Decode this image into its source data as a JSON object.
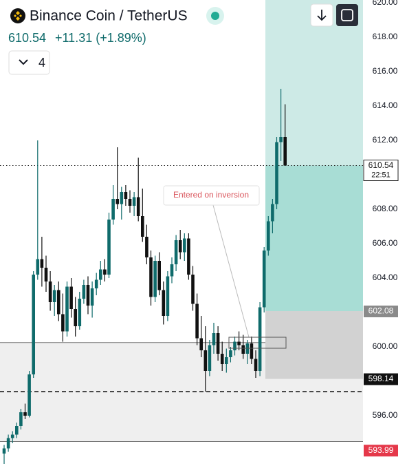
{
  "header": {
    "title": "Binance Coin / TetherUS",
    "price": "610.54",
    "change": "+11.31 (+1.89%)",
    "interval": "4"
  },
  "annotation": "Entered on inversion",
  "chart_data": {
    "type": "candlestick",
    "ylim": [
      592.96,
      620.16
    ],
    "yticks": [
      {
        "value": 596,
        "label": "596.00"
      },
      {
        "value": 600,
        "label": "600.00"
      },
      {
        "value": 604,
        "label": "604.00"
      },
      {
        "value": 606,
        "label": "606.00"
      },
      {
        "value": 608,
        "label": "608.00"
      },
      {
        "value": 612,
        "label": "612.00"
      },
      {
        "value": 614,
        "label": "614.00"
      },
      {
        "value": 616,
        "label": "616.00"
      },
      {
        "value": 618,
        "label": "618.00"
      },
      {
        "value": 620,
        "label": "620.00"
      }
    ],
    "up_color": "#0f6b6b",
    "down_color": "#111111",
    "open": [
      593.8,
      594.1,
      594.7,
      594.9,
      595.4,
      596.2,
      596.0,
      598.4,
      604.2,
      605.1,
      604.6,
      603.8,
      602.6,
      603.3,
      601.9,
      600.9,
      603.5,
      602.2,
      601.2,
      602.8,
      603.6,
      602.4,
      603.4,
      603.9,
      604.5,
      604.2,
      607.4,
      608.6,
      608.3,
      609.0,
      608.6,
      608.2,
      608.7,
      607.6,
      606.4,
      605.2,
      602.9,
      605.0,
      603.3,
      601.8,
      604.1,
      604.8,
      606.2,
      605.5,
      606.3,
      604.2,
      602.5,
      600.5,
      599.8,
      598.6,
      600.1,
      600.8,
      599.6,
      599.0,
      599.4,
      599.8,
      600.3,
      600.1,
      599.6,
      600.2,
      599.3,
      598.6,
      602.3,
      605.6,
      607.3,
      608.3,
      611.9,
      612.2
    ],
    "high": [
      594.3,
      594.9,
      595.1,
      595.6,
      596.4,
      596.7,
      598.6,
      604.4,
      612.0,
      606.4,
      605.3,
      604.4,
      603.6,
      603.8,
      603.1,
      603.8,
      604.0,
      602.9,
      603.2,
      603.9,
      604.1,
      603.8,
      604.3,
      605.0,
      605.1,
      607.8,
      609.4,
      611.6,
      609.3,
      609.4,
      609.1,
      609.0,
      611.0,
      609.2,
      607.1,
      605.6,
      605.3,
      605.5,
      603.8,
      604.4,
      605.2,
      606.5,
      606.8,
      606.6,
      606.6,
      604.7,
      603.1,
      601.8,
      601.2,
      600.4,
      601.4,
      601.2,
      600.3,
      599.9,
      600.0,
      600.6,
      600.9,
      600.7,
      600.4,
      600.6,
      599.8,
      602.6,
      605.8,
      607.6,
      608.6,
      612.2,
      615.0,
      614.1
    ],
    "low": [
      593.2,
      593.9,
      594.4,
      594.7,
      595.2,
      595.8,
      595.9,
      598.2,
      603.9,
      603.5,
      603.2,
      602.1,
      601.8,
      601.5,
      600.3,
      600.6,
      601.7,
      600.6,
      601.0,
      602.5,
      601.9,
      601.7,
      603.0,
      603.6,
      603.8,
      604.0,
      607.1,
      608.0,
      607.4,
      608.2,
      607.8,
      607.6,
      607.3,
      606.1,
      604.8,
      602.4,
      602.6,
      603.0,
      601.3,
      601.5,
      603.7,
      604.4,
      605.1,
      605.0,
      603.9,
      602.1,
      600.1,
      599.4,
      597.4,
      598.3,
      599.6,
      599.2,
      598.6,
      598.5,
      599.1,
      599.5,
      599.8,
      599.3,
      599.0,
      599.0,
      598.2,
      598.3,
      602.0,
      605.3,
      606.6,
      608.0,
      610.8,
      610.6
    ],
    "close": [
      594.1,
      594.7,
      594.9,
      595.4,
      596.2,
      596.0,
      598.4,
      604.2,
      605.1,
      604.6,
      603.8,
      602.6,
      603.3,
      601.9,
      600.9,
      603.5,
      602.2,
      601.2,
      602.8,
      603.6,
      602.4,
      603.4,
      603.9,
      604.5,
      604.2,
      607.4,
      608.6,
      608.3,
      609.0,
      608.6,
      608.2,
      608.7,
      607.6,
      606.4,
      605.2,
      602.9,
      605.0,
      603.3,
      601.8,
      604.1,
      604.8,
      606.2,
      605.5,
      606.3,
      604.2,
      602.5,
      600.5,
      599.8,
      598.6,
      600.1,
      600.8,
      599.6,
      599.0,
      599.4,
      599.8,
      600.3,
      600.1,
      599.6,
      600.2,
      599.3,
      598.6,
      602.3,
      605.6,
      607.3,
      608.3,
      611.9,
      612.2,
      610.54
    ],
    "zone": [
      594.5,
      600.25
    ],
    "dashed_level": 597.4,
    "price_labels": [
      {
        "value": 610.54,
        "sub": "22:51",
        "color": "#ffffff",
        "text_color": "#111111"
      },
      {
        "value": 602.08,
        "color": "#8a8a8a",
        "text_color": "#ffffff"
      },
      {
        "value": 598.14,
        "color": "#111111",
        "text_color": "#ffffff"
      },
      {
        "value": 593.99,
        "color": "#e5384a",
        "text_color": "#ffffff"
      }
    ]
  }
}
